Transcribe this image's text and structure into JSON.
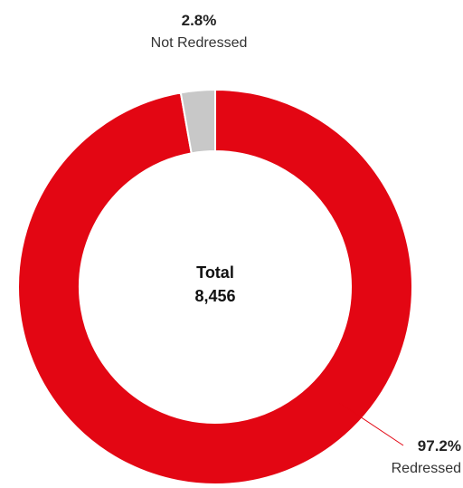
{
  "chart_data": {
    "type": "pie",
    "donut": true,
    "center_label": "Total",
    "center_value": "8,456",
    "slices": [
      {
        "label": "Redressed",
        "value": 97.2,
        "display": "97.2%",
        "color": "#e30613"
      },
      {
        "label": "Not Redressed",
        "value": 2.8,
        "display": "2.8%",
        "color": "#c8c8c8"
      }
    ]
  }
}
